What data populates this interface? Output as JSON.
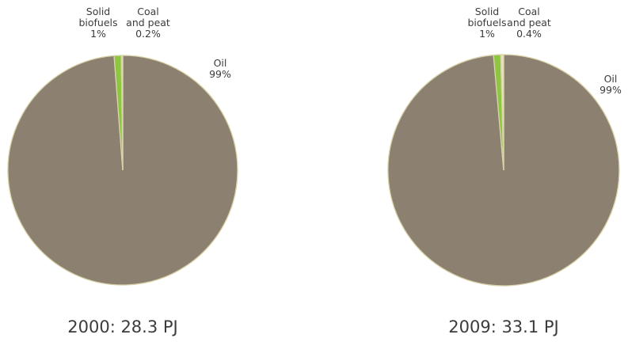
{
  "chart_data": [
    {
      "type": "pie",
      "caption": "2000: 28.3 PJ",
      "series": [
        {
          "name": "Oil",
          "label_lines": [
            "Oil",
            "99%"
          ],
          "value": 98.8,
          "color": "#8c8070"
        },
        {
          "name": "Solid biofuels",
          "label_lines": [
            "Solid",
            "biofuels",
            "1%"
          ],
          "value": 1.0,
          "color": "#8dc63f"
        },
        {
          "name": "Coal and peat",
          "label_lines": [
            "Coal",
            "and peat",
            "0.2%"
          ],
          "value": 0.2,
          "color": "#e9e2c0"
        }
      ],
      "start_angle_deg": 0,
      "direction": "counterclockwise",
      "outline_color": "#d8d2a8"
    },
    {
      "type": "pie",
      "caption": "2009: 33.1 PJ",
      "series": [
        {
          "name": "Oil",
          "label_lines": [
            "Oil",
            "99%"
          ],
          "value": 98.6,
          "color": "#8c8070"
        },
        {
          "name": "Solid biofuels",
          "label_lines": [
            "Solid",
            "biofuels",
            "1%"
          ],
          "value": 1.0,
          "color": "#8dc63f"
        },
        {
          "name": "Coal and peat",
          "label_lines": [
            "Coal",
            "and peat",
            "0.4%"
          ],
          "value": 0.4,
          "color": "#e9e2c0"
        }
      ],
      "start_angle_deg": 0,
      "direction": "counterclockwise",
      "outline_color": "#d8d2a8"
    }
  ]
}
